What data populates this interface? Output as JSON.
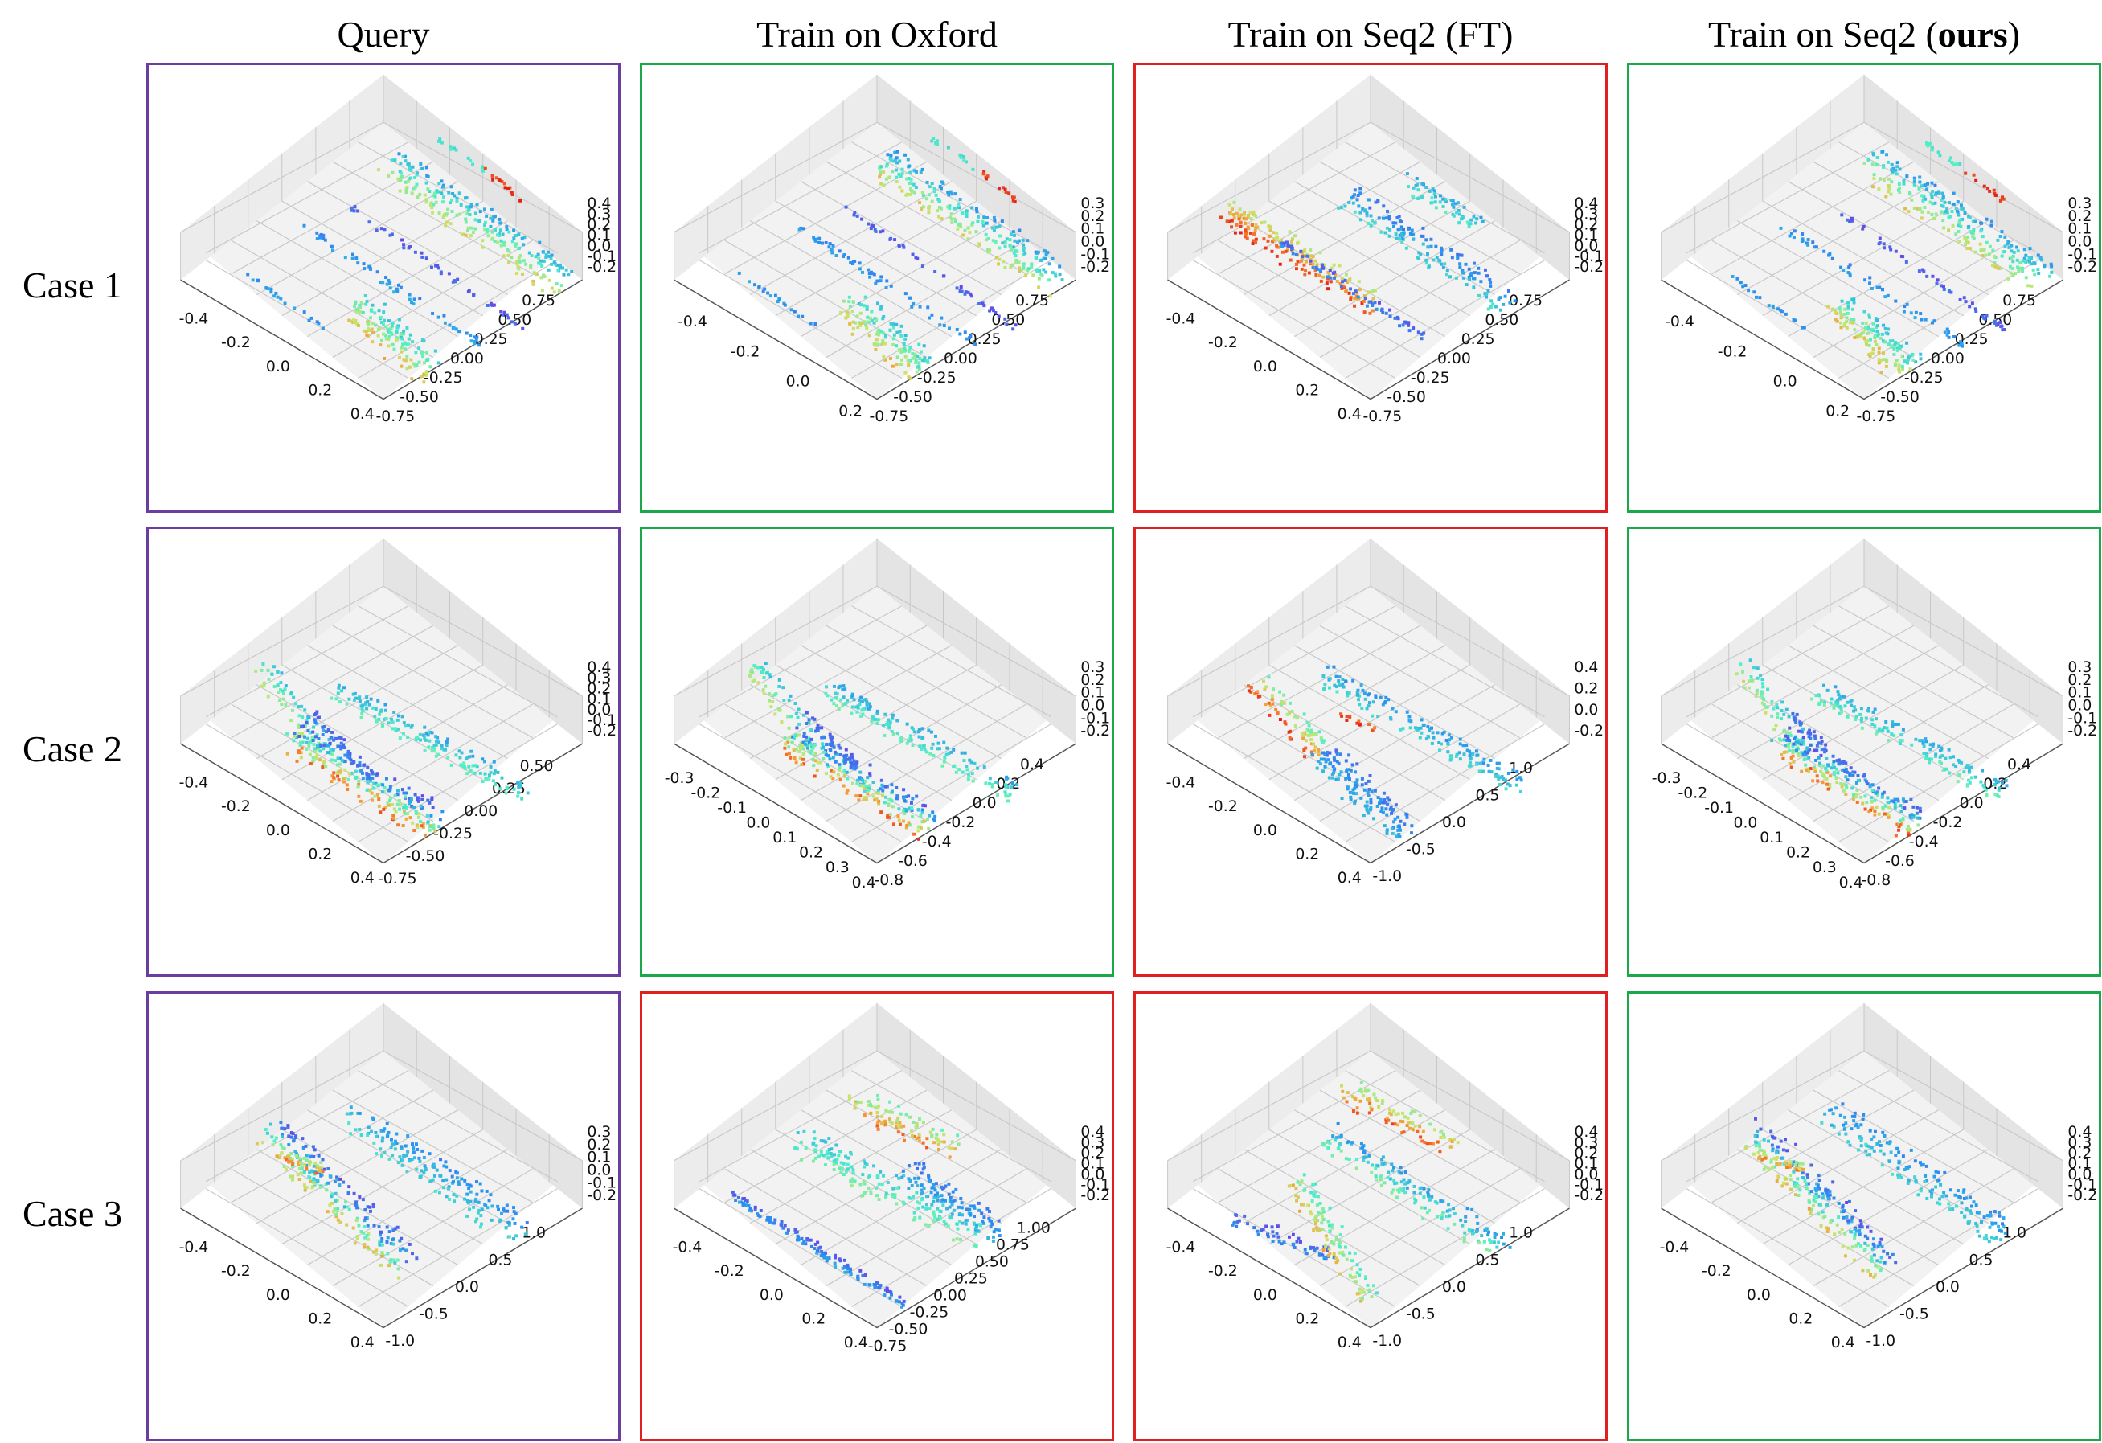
{
  "columns": [
    {
      "id": "query",
      "label": "Query",
      "bold_suffix": "",
      "suffix_close": ""
    },
    {
      "id": "oxford",
      "label": "Train on Oxford",
      "bold_suffix": "",
      "suffix_close": ""
    },
    {
      "id": "seq2ft",
      "label": "Train on Seq2 (FT)",
      "bold_suffix": "",
      "suffix_close": ""
    },
    {
      "id": "seq2ours",
      "label": "Train on Seq2 (",
      "bold_suffix": "ours",
      "suffix_close": ")"
    }
  ],
  "rows": [
    {
      "label": "Case 1"
    },
    {
      "label": "Case 2"
    },
    {
      "label": "Case 3"
    }
  ],
  "colors": {
    "query_border": "#6a3ea1",
    "correct_border": "#1aa84a",
    "wrong_border": "#e02020",
    "grid": "#c8c8c8",
    "pane": "#f2f2f2"
  },
  "panels": [
    {
      "row": 0,
      "col": 0,
      "status": "query",
      "x_ticks": [
        "-0.4",
        "-0.2",
        "0.0",
        "0.2",
        "0.4"
      ],
      "y_ticks": [
        "0.75",
        "0.50",
        "0.25",
        "0.00",
        "-0.25",
        "-0.50",
        "-0.75"
      ],
      "z_ticks": [
        "0.4",
        "0.3",
        "0.2",
        "0.1",
        "0.0",
        "-0.1",
        "-0.2"
      ],
      "scene": "c1"
    },
    {
      "row": 0,
      "col": 1,
      "status": "correct",
      "x_ticks": [
        "-0.4",
        "-0.2",
        "0.0",
        "0.2"
      ],
      "y_ticks": [
        "0.75",
        "0.50",
        "0.25",
        "0.00",
        "-0.25",
        "-0.50",
        "-0.75"
      ],
      "z_ticks": [
        "0.3",
        "0.2",
        "0.1",
        "0.0",
        "-0.1",
        "-0.2"
      ],
      "scene": "c1"
    },
    {
      "row": 0,
      "col": 2,
      "status": "wrong",
      "x_ticks": [
        "-0.4",
        "-0.2",
        "0.0",
        "0.2",
        "0.4"
      ],
      "y_ticks": [
        "0.75",
        "0.50",
        "0.25",
        "0.00",
        "-0.25",
        "-0.50",
        "-0.75"
      ],
      "z_ticks": [
        "0.4",
        "0.3",
        "0.2",
        "0.1",
        "0.0",
        "-0.1",
        "-0.2"
      ],
      "scene": "c1ft"
    },
    {
      "row": 0,
      "col": 3,
      "status": "correct",
      "x_ticks": [
        "-0.4",
        "-0.2",
        "0.0",
        "0.2"
      ],
      "y_ticks": [
        "0.75",
        "0.50",
        "0.25",
        "0.00",
        "-0.25",
        "-0.50",
        "-0.75"
      ],
      "z_ticks": [
        "0.3",
        "0.2",
        "0.1",
        "0.0",
        "-0.1",
        "-0.2"
      ],
      "scene": "c1"
    },
    {
      "row": 1,
      "col": 0,
      "status": "query",
      "x_ticks": [
        "-0.4",
        "-0.2",
        "0.0",
        "0.2",
        "0.4"
      ],
      "y_ticks": [
        "0.50",
        "0.25",
        "0.00",
        "-0.25",
        "-0.50",
        "-0.75"
      ],
      "z_ticks": [
        "0.4",
        "0.3",
        "0.2",
        "0.1",
        "0.0",
        "-0.1",
        "-0.2"
      ],
      "scene": "c2"
    },
    {
      "row": 1,
      "col": 1,
      "status": "correct",
      "x_ticks": [
        "-0.3",
        "-0.2",
        "-0.1",
        "0.0",
        "0.1",
        "0.2",
        "0.3",
        "0.4"
      ],
      "y_ticks": [
        "0.4",
        "0.2",
        "0.0",
        "-0.2",
        "-0.4",
        "-0.6",
        "-0.8"
      ],
      "z_ticks": [
        "0.3",
        "0.2",
        "0.1",
        "0.0",
        "-0.1",
        "-0.2"
      ],
      "scene": "c2"
    },
    {
      "row": 1,
      "col": 2,
      "status": "wrong",
      "x_ticks": [
        "-0.4",
        "-0.2",
        "0.0",
        "0.2",
        "0.4"
      ],
      "y_ticks": [
        "1.0",
        "0.5",
        "0.0",
        "-0.5",
        "-1.0"
      ],
      "z_ticks": [
        "0.4",
        "0.2",
        "0.0",
        "-0.2"
      ],
      "scene": "c2ft"
    },
    {
      "row": 1,
      "col": 3,
      "status": "correct",
      "x_ticks": [
        "-0.3",
        "-0.2",
        "-0.1",
        "0.0",
        "0.1",
        "0.2",
        "0.3",
        "0.4"
      ],
      "y_ticks": [
        "0.4",
        "0.2",
        "0.0",
        "-0.2",
        "-0.4",
        "-0.6",
        "-0.8"
      ],
      "z_ticks": [
        "0.3",
        "0.2",
        "0.1",
        "0.0",
        "-0.1",
        "-0.2"
      ],
      "scene": "c2"
    },
    {
      "row": 2,
      "col": 0,
      "status": "query",
      "x_ticks": [
        "-0.4",
        "-0.2",
        "0.0",
        "0.2",
        "0.4"
      ],
      "y_ticks": [
        "1.0",
        "0.5",
        "0.0",
        "-0.5",
        "-1.0"
      ],
      "z_ticks": [
        "0.3",
        "0.2",
        "0.1",
        "0.0",
        "-0.1",
        "-0.2"
      ],
      "scene": "c3"
    },
    {
      "row": 2,
      "col": 1,
      "status": "wrong",
      "x_ticks": [
        "-0.4",
        "-0.2",
        "0.0",
        "0.2",
        "0.4"
      ],
      "y_ticks": [
        "1.00",
        "0.75",
        "0.50",
        "0.25",
        "0.00",
        "-0.25",
        "-0.50",
        "-0.75"
      ],
      "z_ticks": [
        "0.4",
        "0.3",
        "0.2",
        "0.1",
        "0.0",
        "-0.1",
        "-0.2"
      ],
      "scene": "c3ox"
    },
    {
      "row": 2,
      "col": 2,
      "status": "wrong",
      "x_ticks": [
        "-0.4",
        "-0.2",
        "0.0",
        "0.2",
        "0.4"
      ],
      "y_ticks": [
        "1.0",
        "0.5",
        "0.0",
        "-0.5",
        "-1.0"
      ],
      "z_ticks": [
        "0.4",
        "0.3",
        "0.2",
        "0.1",
        "0.0",
        "-0.1",
        "-0.2"
      ],
      "scene": "c3ft"
    },
    {
      "row": 2,
      "col": 3,
      "status": "correct",
      "x_ticks": [
        "-0.4",
        "-0.2",
        "0.0",
        "0.2",
        "0.4"
      ],
      "y_ticks": [
        "1.0",
        "0.5",
        "0.0",
        "-0.5",
        "-1.0"
      ],
      "z_ticks": [
        "0.4",
        "0.3",
        "0.2",
        "0.1",
        "0.0",
        "-0.1",
        "-0.2"
      ],
      "scene": "c3"
    }
  ]
}
